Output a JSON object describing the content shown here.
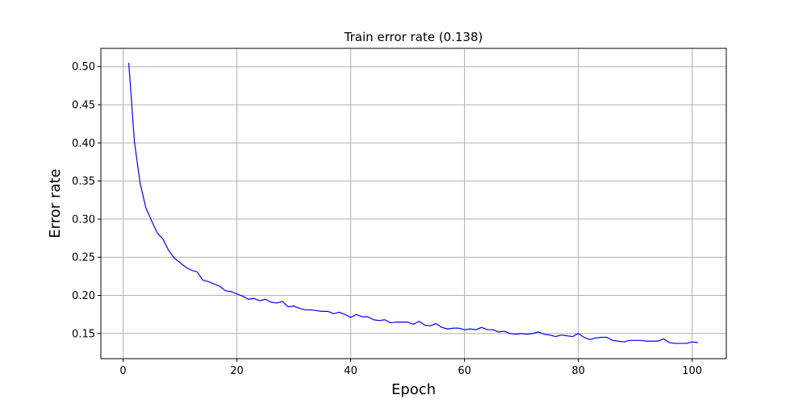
{
  "chart_data": {
    "type": "line",
    "title": "Train error rate (0.138)",
    "xlabel": "Epoch",
    "ylabel": "Error rate",
    "xlim": [
      -3.9,
      106.0
    ],
    "ylim": [
      0.117,
      0.524
    ],
    "xticks": [
      0,
      20,
      40,
      60,
      80,
      100
    ],
    "yticks": [
      0.15,
      0.2,
      0.25,
      0.3,
      0.35,
      0.4,
      0.45,
      0.5
    ],
    "xtick_labels": [
      "0",
      "20",
      "40",
      "60",
      "80",
      "100"
    ],
    "ytick_labels": [
      "0.15",
      "0.20",
      "0.25",
      "0.30",
      "0.35",
      "0.40",
      "0.45",
      "0.50"
    ],
    "grid": true,
    "series_color": "#0000ff",
    "series": [
      {
        "x": [
          1,
          2,
          3,
          4,
          5,
          6,
          7,
          8,
          9,
          10,
          11,
          12,
          13,
          14,
          15,
          16,
          17,
          18,
          19,
          20,
          21,
          22,
          23,
          24,
          25,
          26,
          27,
          28,
          29,
          30,
          31,
          32,
          33,
          34,
          35,
          36,
          37,
          38,
          39,
          40,
          41,
          42,
          43,
          44,
          45,
          46,
          47,
          48,
          49,
          50,
          51,
          52,
          53,
          54,
          55,
          56,
          57,
          58,
          59,
          60,
          61,
          62,
          63,
          64,
          65,
          66,
          67,
          68,
          69,
          70,
          71,
          72,
          73,
          74,
          75,
          76,
          77,
          78,
          79,
          80,
          81,
          82,
          83,
          84,
          85,
          86,
          87,
          88,
          89,
          90,
          91,
          92,
          93,
          94,
          95,
          96,
          97,
          98,
          99,
          100,
          101
        ],
        "values": [
          0.505,
          0.401,
          0.347,
          0.315,
          0.298,
          0.282,
          0.274,
          0.259,
          0.249,
          0.243,
          0.237,
          0.233,
          0.231,
          0.22,
          0.218,
          0.215,
          0.212,
          0.206,
          0.205,
          0.202,
          0.199,
          0.195,
          0.196,
          0.193,
          0.195,
          0.191,
          0.19,
          0.192,
          0.185,
          0.186,
          0.183,
          0.181,
          0.181,
          0.18,
          0.179,
          0.179,
          0.176,
          0.178,
          0.175,
          0.171,
          0.175,
          0.172,
          0.172,
          0.168,
          0.167,
          0.168,
          0.164,
          0.165,
          0.165,
          0.165,
          0.162,
          0.166,
          0.161,
          0.16,
          0.163,
          0.158,
          0.156,
          0.157,
          0.157,
          0.155,
          0.156,
          0.155,
          0.158,
          0.155,
          0.155,
          0.152,
          0.153,
          0.15,
          0.149,
          0.15,
          0.149,
          0.15,
          0.152,
          0.149,
          0.148,
          0.146,
          0.148,
          0.147,
          0.146,
          0.15,
          0.145,
          0.142,
          0.144,
          0.145,
          0.145,
          0.141,
          0.14,
          0.139,
          0.141,
          0.141,
          0.141,
          0.14,
          0.14,
          0.14,
          0.143,
          0.138,
          0.137,
          0.137,
          0.137,
          0.139,
          0.138
        ]
      }
    ]
  }
}
